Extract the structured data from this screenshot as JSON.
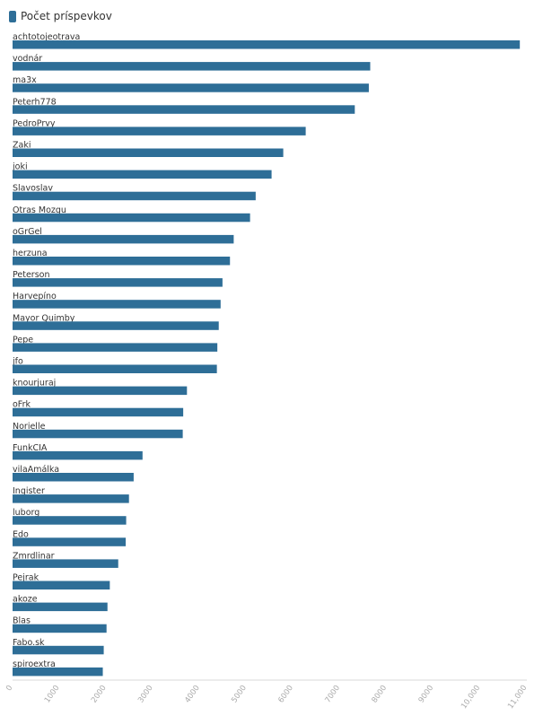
{
  "chart_data": {
    "type": "bar",
    "orientation": "horizontal",
    "legend": {
      "label": "Počet príspevkov",
      "position": "top-left"
    },
    "bar_color": "#2e6e97",
    "categories": [
      "achtotojeotrava",
      "vodnár",
      "ma3x",
      "Peterh778",
      "PedroPrvy",
      "Zaki",
      "joki",
      "Slavoslav",
      "Otras Mozgu",
      "oGrGel",
      "herzuna",
      "Peterson",
      "Harvepíno",
      "Mayor Quimby",
      "Pepe",
      "jfo",
      "knourjuraj",
      "oFrk",
      "Norielle",
      "FunkCIA",
      "vilaAmálka",
      "Ingister",
      "luborg",
      "Edo",
      "Zmrdlinar",
      "Pejrak",
      "akoze",
      "Blas",
      "Fabo.sk",
      "spiroextra"
    ],
    "series": [
      {
        "name": "Počet príspevkov",
        "values": [
          10850,
          7650,
          7620,
          7320,
          6270,
          5790,
          5540,
          5200,
          5080,
          4730,
          4650,
          4490,
          4450,
          4410,
          4380,
          4370,
          3730,
          3650,
          3640,
          2780,
          2590,
          2490,
          2430,
          2420,
          2260,
          2080,
          2030,
          2010,
          1950,
          1930
        ]
      }
    ],
    "xlim": [
      0,
      11000
    ],
    "ticks": [
      0,
      1000,
      2000,
      3000,
      4000,
      5000,
      6000,
      7000,
      8000,
      9000,
      10000,
      11000
    ],
    "tick_labels": [
      "0",
      "1000",
      "2000",
      "3000",
      "4000",
      "5000",
      "6000",
      "7000",
      "8000",
      "9000",
      "10,000",
      "11,000"
    ],
    "grid": false
  }
}
